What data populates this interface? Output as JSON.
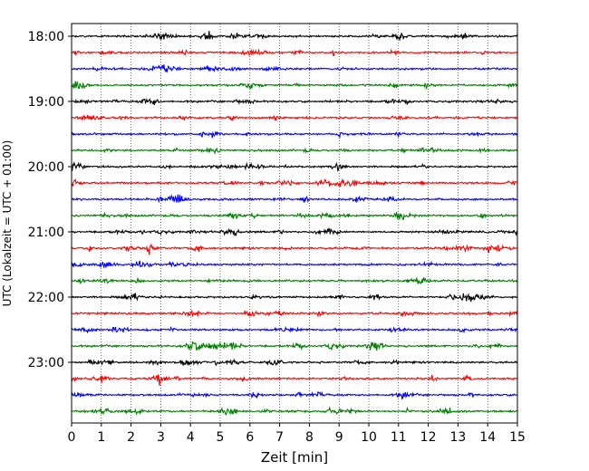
{
  "chart_data": {
    "type": "line",
    "title": "",
    "xlabel": "Zeit  [min]",
    "ylabel": "UTC (Lokalzeit = UTC + 01:00)",
    "xlim": [
      0,
      15
    ],
    "x_ticks": [
      "0",
      "1",
      "2",
      "3",
      "4",
      "5",
      "6",
      "7",
      "8",
      "9",
      "10",
      "11",
      "12",
      "13",
      "14",
      "15"
    ],
    "y_ticks": [
      "18:00",
      "19:00",
      "20:00",
      "21:00",
      "22:00",
      "23:00"
    ],
    "grid": "vertical dotted",
    "colors": [
      "#000000",
      "#ff0000",
      "#0000ff",
      "#008000"
    ],
    "series": [
      {
        "start": "18:00",
        "color": "#000000"
      },
      {
        "start": "18:15",
        "color": "#ff0000"
      },
      {
        "start": "18:30",
        "color": "#0000ff"
      },
      {
        "start": "18:45",
        "color": "#008000"
      },
      {
        "start": "19:00",
        "color": "#000000"
      },
      {
        "start": "19:15",
        "color": "#ff0000"
      },
      {
        "start": "19:30",
        "color": "#0000ff"
      },
      {
        "start": "19:45",
        "color": "#008000"
      },
      {
        "start": "20:00",
        "color": "#000000"
      },
      {
        "start": "20:15",
        "color": "#ff0000"
      },
      {
        "start": "20:30",
        "color": "#0000ff"
      },
      {
        "start": "20:45",
        "color": "#008000"
      },
      {
        "start": "21:00",
        "color": "#000000"
      },
      {
        "start": "21:15",
        "color": "#ff0000"
      },
      {
        "start": "21:30",
        "color": "#0000ff"
      },
      {
        "start": "21:45",
        "color": "#008000"
      },
      {
        "start": "22:00",
        "color": "#000000"
      },
      {
        "start": "22:15",
        "color": "#ff0000"
      },
      {
        "start": "22:30",
        "color": "#0000ff"
      },
      {
        "start": "22:45",
        "color": "#008000"
      },
      {
        "start": "23:00",
        "color": "#000000"
      },
      {
        "start": "23:15",
        "color": "#ff0000"
      },
      {
        "start": "23:30",
        "color": "#0000ff"
      },
      {
        "start": "23:45",
        "color": "#008000"
      }
    ]
  }
}
